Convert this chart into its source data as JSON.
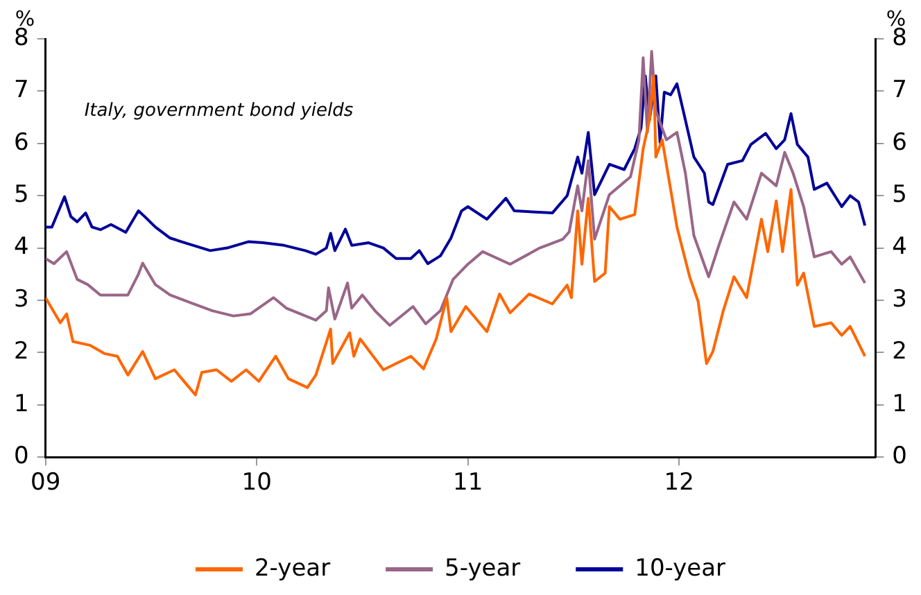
{
  "chart_data": {
    "type": "line",
    "ylabel": "%",
    "y2label": "%",
    "annotations": [
      "Italy, government bond yields"
    ],
    "xlim": [
      2009,
      2012.93
    ],
    "xticks": [
      {
        "value": 2009,
        "label": "09"
      },
      {
        "value": 2010,
        "label": "10"
      },
      {
        "value": 2011,
        "label": "11"
      },
      {
        "value": 2012,
        "label": "12"
      }
    ],
    "ylim": [
      0,
      8
    ],
    "yticks": [
      0,
      1,
      2,
      3,
      4,
      5,
      6,
      7,
      8
    ],
    "y2lim": [
      0,
      8
    ],
    "y2ticks": [
      0,
      1,
      2,
      3,
      4,
      5,
      6,
      7,
      8
    ],
    "grid": false,
    "legend": "bottom",
    "marker": "none",
    "line_style": "solid",
    "series": [
      {
        "name": "2-year",
        "color": "#ff6600",
        "x": [
          2009.0,
          2009.07,
          2009.1,
          2009.13,
          2009.21,
          2009.28,
          2009.34,
          2009.39,
          2009.46,
          2009.52,
          2009.61,
          2009.66,
          2009.71,
          2009.74,
          2009.81,
          2009.88,
          2009.95,
          2010.01,
          2010.09,
          2010.15,
          2010.24,
          2010.28,
          2010.35,
          2010.36,
          2010.44,
          2010.46,
          2010.49,
          2010.6,
          2010.73,
          2010.79,
          2010.85,
          2010.9,
          2010.92,
          2010.99,
          2011.09,
          2011.15,
          2011.2,
          2011.29,
          2011.4,
          2011.47,
          2011.49,
          2011.52,
          2011.54,
          2011.57,
          2011.6,
          2011.65,
          2011.67,
          2011.72,
          2011.79,
          2011.83,
          2011.86,
          2011.88,
          2011.89,
          2011.92,
          2011.96,
          2011.99,
          2012.05,
          2012.09,
          2012.13,
          2012.16,
          2012.21,
          2012.26,
          2012.32,
          2012.39,
          2012.42,
          2012.46,
          2012.49,
          2012.53,
          2012.56,
          2012.59,
          2012.64,
          2012.72,
          2012.77,
          2012.81,
          2012.88
        ],
        "values": [
          3.05,
          2.57,
          2.74,
          2.21,
          2.14,
          1.98,
          1.93,
          1.57,
          2.02,
          1.5,
          1.67,
          1.43,
          1.19,
          1.62,
          1.67,
          1.45,
          1.67,
          1.45,
          1.93,
          1.5,
          1.33,
          1.57,
          2.45,
          1.79,
          2.38,
          1.93,
          2.26,
          1.67,
          1.93,
          1.69,
          2.26,
          3.05,
          2.4,
          2.88,
          2.4,
          3.12,
          2.76,
          3.12,
          2.93,
          3.29,
          3.05,
          4.71,
          3.69,
          4.95,
          3.36,
          3.52,
          4.79,
          4.55,
          4.64,
          5.9,
          6.45,
          7.29,
          5.74,
          6.07,
          5.12,
          4.4,
          3.45,
          2.98,
          1.79,
          2.02,
          2.81,
          3.45,
          3.05,
          4.55,
          3.93,
          4.9,
          3.93,
          5.12,
          3.29,
          3.52,
          2.5,
          2.57,
          2.33,
          2.5,
          1.93
        ]
      },
      {
        "name": "5-year",
        "color": "#996688",
        "x": [
          2009.0,
          2009.04,
          2009.1,
          2009.15,
          2009.2,
          2009.26,
          2009.39,
          2009.44,
          2009.46,
          2009.52,
          2009.59,
          2009.69,
          2009.79,
          2009.89,
          2009.97,
          2010.08,
          2010.14,
          2010.28,
          2010.33,
          2010.34,
          2010.37,
          2010.43,
          2010.45,
          2010.5,
          2010.56,
          2010.63,
          2010.74,
          2010.8,
          2010.87,
          2010.93,
          2011.0,
          2011.07,
          2011.2,
          2011.34,
          2011.45,
          2011.48,
          2011.52,
          2011.54,
          2011.57,
          2011.6,
          2011.67,
          2011.72,
          2011.77,
          2011.81,
          2011.83,
          2011.85,
          2011.87,
          2011.89,
          2011.94,
          2011.99,
          2012.03,
          2012.07,
          2012.14,
          2012.19,
          2012.26,
          2012.32,
          2012.39,
          2012.46,
          2012.5,
          2012.54,
          2012.59,
          2012.64,
          2012.72,
          2012.77,
          2012.81,
          2012.88
        ],
        "values": [
          3.8,
          3.7,
          3.93,
          3.4,
          3.3,
          3.1,
          3.1,
          3.5,
          3.71,
          3.3,
          3.1,
          2.95,
          2.8,
          2.7,
          2.74,
          3.05,
          2.85,
          2.62,
          2.8,
          3.24,
          2.64,
          3.33,
          2.85,
          3.1,
          2.8,
          2.52,
          2.88,
          2.55,
          2.8,
          3.4,
          3.69,
          3.93,
          3.69,
          4.0,
          4.17,
          4.31,
          5.19,
          4.71,
          5.67,
          4.17,
          5.02,
          5.19,
          5.36,
          6.07,
          7.64,
          6.21,
          7.76,
          6.62,
          6.07,
          6.21,
          5.43,
          4.24,
          3.45,
          4.07,
          4.88,
          4.55,
          5.43,
          5.19,
          5.83,
          5.43,
          4.79,
          3.83,
          3.93,
          3.69,
          3.83,
          3.33
        ]
      },
      {
        "name": "10-year",
        "color": "#000099",
        "x": [
          2009.0,
          2009.03,
          2009.09,
          2009.12,
          2009.15,
          2009.19,
          2009.22,
          2009.26,
          2009.31,
          2009.38,
          2009.44,
          2009.47,
          2009.52,
          2009.59,
          2009.66,
          2009.7,
          2009.78,
          2009.86,
          2009.96,
          2010.03,
          2010.13,
          2010.23,
          2010.28,
          2010.33,
          2010.35,
          2010.37,
          2010.42,
          2010.45,
          2010.53,
          2010.6,
          2010.66,
          2010.73,
          2010.77,
          2010.81,
          2010.87,
          2010.92,
          2010.97,
          2011.0,
          2011.09,
          2011.18,
          2011.22,
          2011.4,
          2011.47,
          2011.52,
          2011.54,
          2011.57,
          2011.6,
          2011.67,
          2011.74,
          2011.79,
          2011.82,
          2011.84,
          2011.86,
          2011.89,
          2011.91,
          2011.93,
          2011.96,
          2011.99,
          2012.02,
          2012.07,
          2012.12,
          2012.14,
          2012.16,
          2012.23,
          2012.3,
          2012.34,
          2012.41,
          2012.46,
          2012.5,
          2012.53,
          2012.56,
          2012.61,
          2012.64,
          2012.7,
          2012.77,
          2012.81,
          2012.85,
          2012.88
        ],
        "values": [
          4.4,
          4.4,
          4.98,
          4.6,
          4.5,
          4.67,
          4.4,
          4.35,
          4.45,
          4.3,
          4.71,
          4.6,
          4.4,
          4.19,
          4.1,
          4.05,
          3.95,
          4.0,
          4.12,
          4.1,
          4.05,
          3.95,
          3.88,
          4.0,
          4.28,
          3.95,
          4.36,
          4.05,
          4.1,
          4.0,
          3.8,
          3.8,
          3.95,
          3.7,
          3.85,
          4.19,
          4.71,
          4.79,
          4.55,
          4.95,
          4.71,
          4.67,
          5.0,
          5.74,
          5.43,
          6.21,
          5.02,
          5.6,
          5.5,
          5.9,
          6.3,
          7.29,
          6.45,
          7.29,
          6.02,
          6.98,
          6.93,
          7.14,
          6.62,
          5.74,
          5.43,
          4.88,
          4.83,
          5.6,
          5.67,
          5.98,
          6.19,
          5.9,
          6.07,
          6.57,
          5.98,
          5.74,
          5.12,
          5.24,
          4.79,
          5.0,
          4.88,
          4.43
        ]
      }
    ]
  }
}
